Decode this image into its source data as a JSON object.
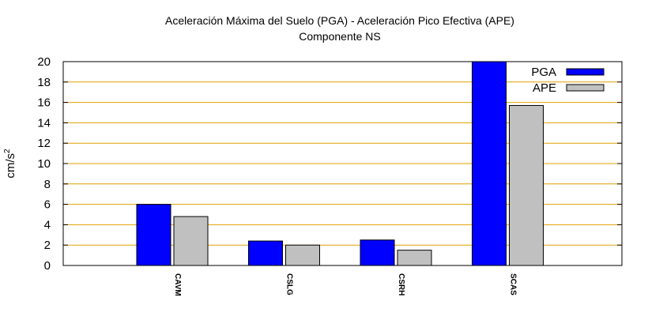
{
  "chart_data": {
    "type": "bar",
    "title_line1": "Aceleración Máxima del Suelo (PGA) -  Aceleración Pico Efectiva (APE)",
    "title_line2": "Componente NS",
    "ylabel": "cm/s",
    "ylabel_sup": "2",
    "xlabel": "",
    "ylim": [
      0,
      20
    ],
    "yticks": [
      0,
      2,
      4,
      6,
      8,
      10,
      12,
      14,
      16,
      18,
      20
    ],
    "grid": true,
    "grid_color": "#e0a000",
    "legend_position": "top-right",
    "categories": [
      "CAVM",
      "CSLG",
      "CSRH",
      "SCAS"
    ],
    "series": [
      {
        "name": "PGA",
        "color": "#0000ff",
        "values": [
          6.0,
          2.4,
          2.5,
          20.0
        ]
      },
      {
        "name": "APE",
        "color": "#c0c0c0",
        "values": [
          4.8,
          2.0,
          1.5,
          15.7
        ]
      }
    ]
  }
}
